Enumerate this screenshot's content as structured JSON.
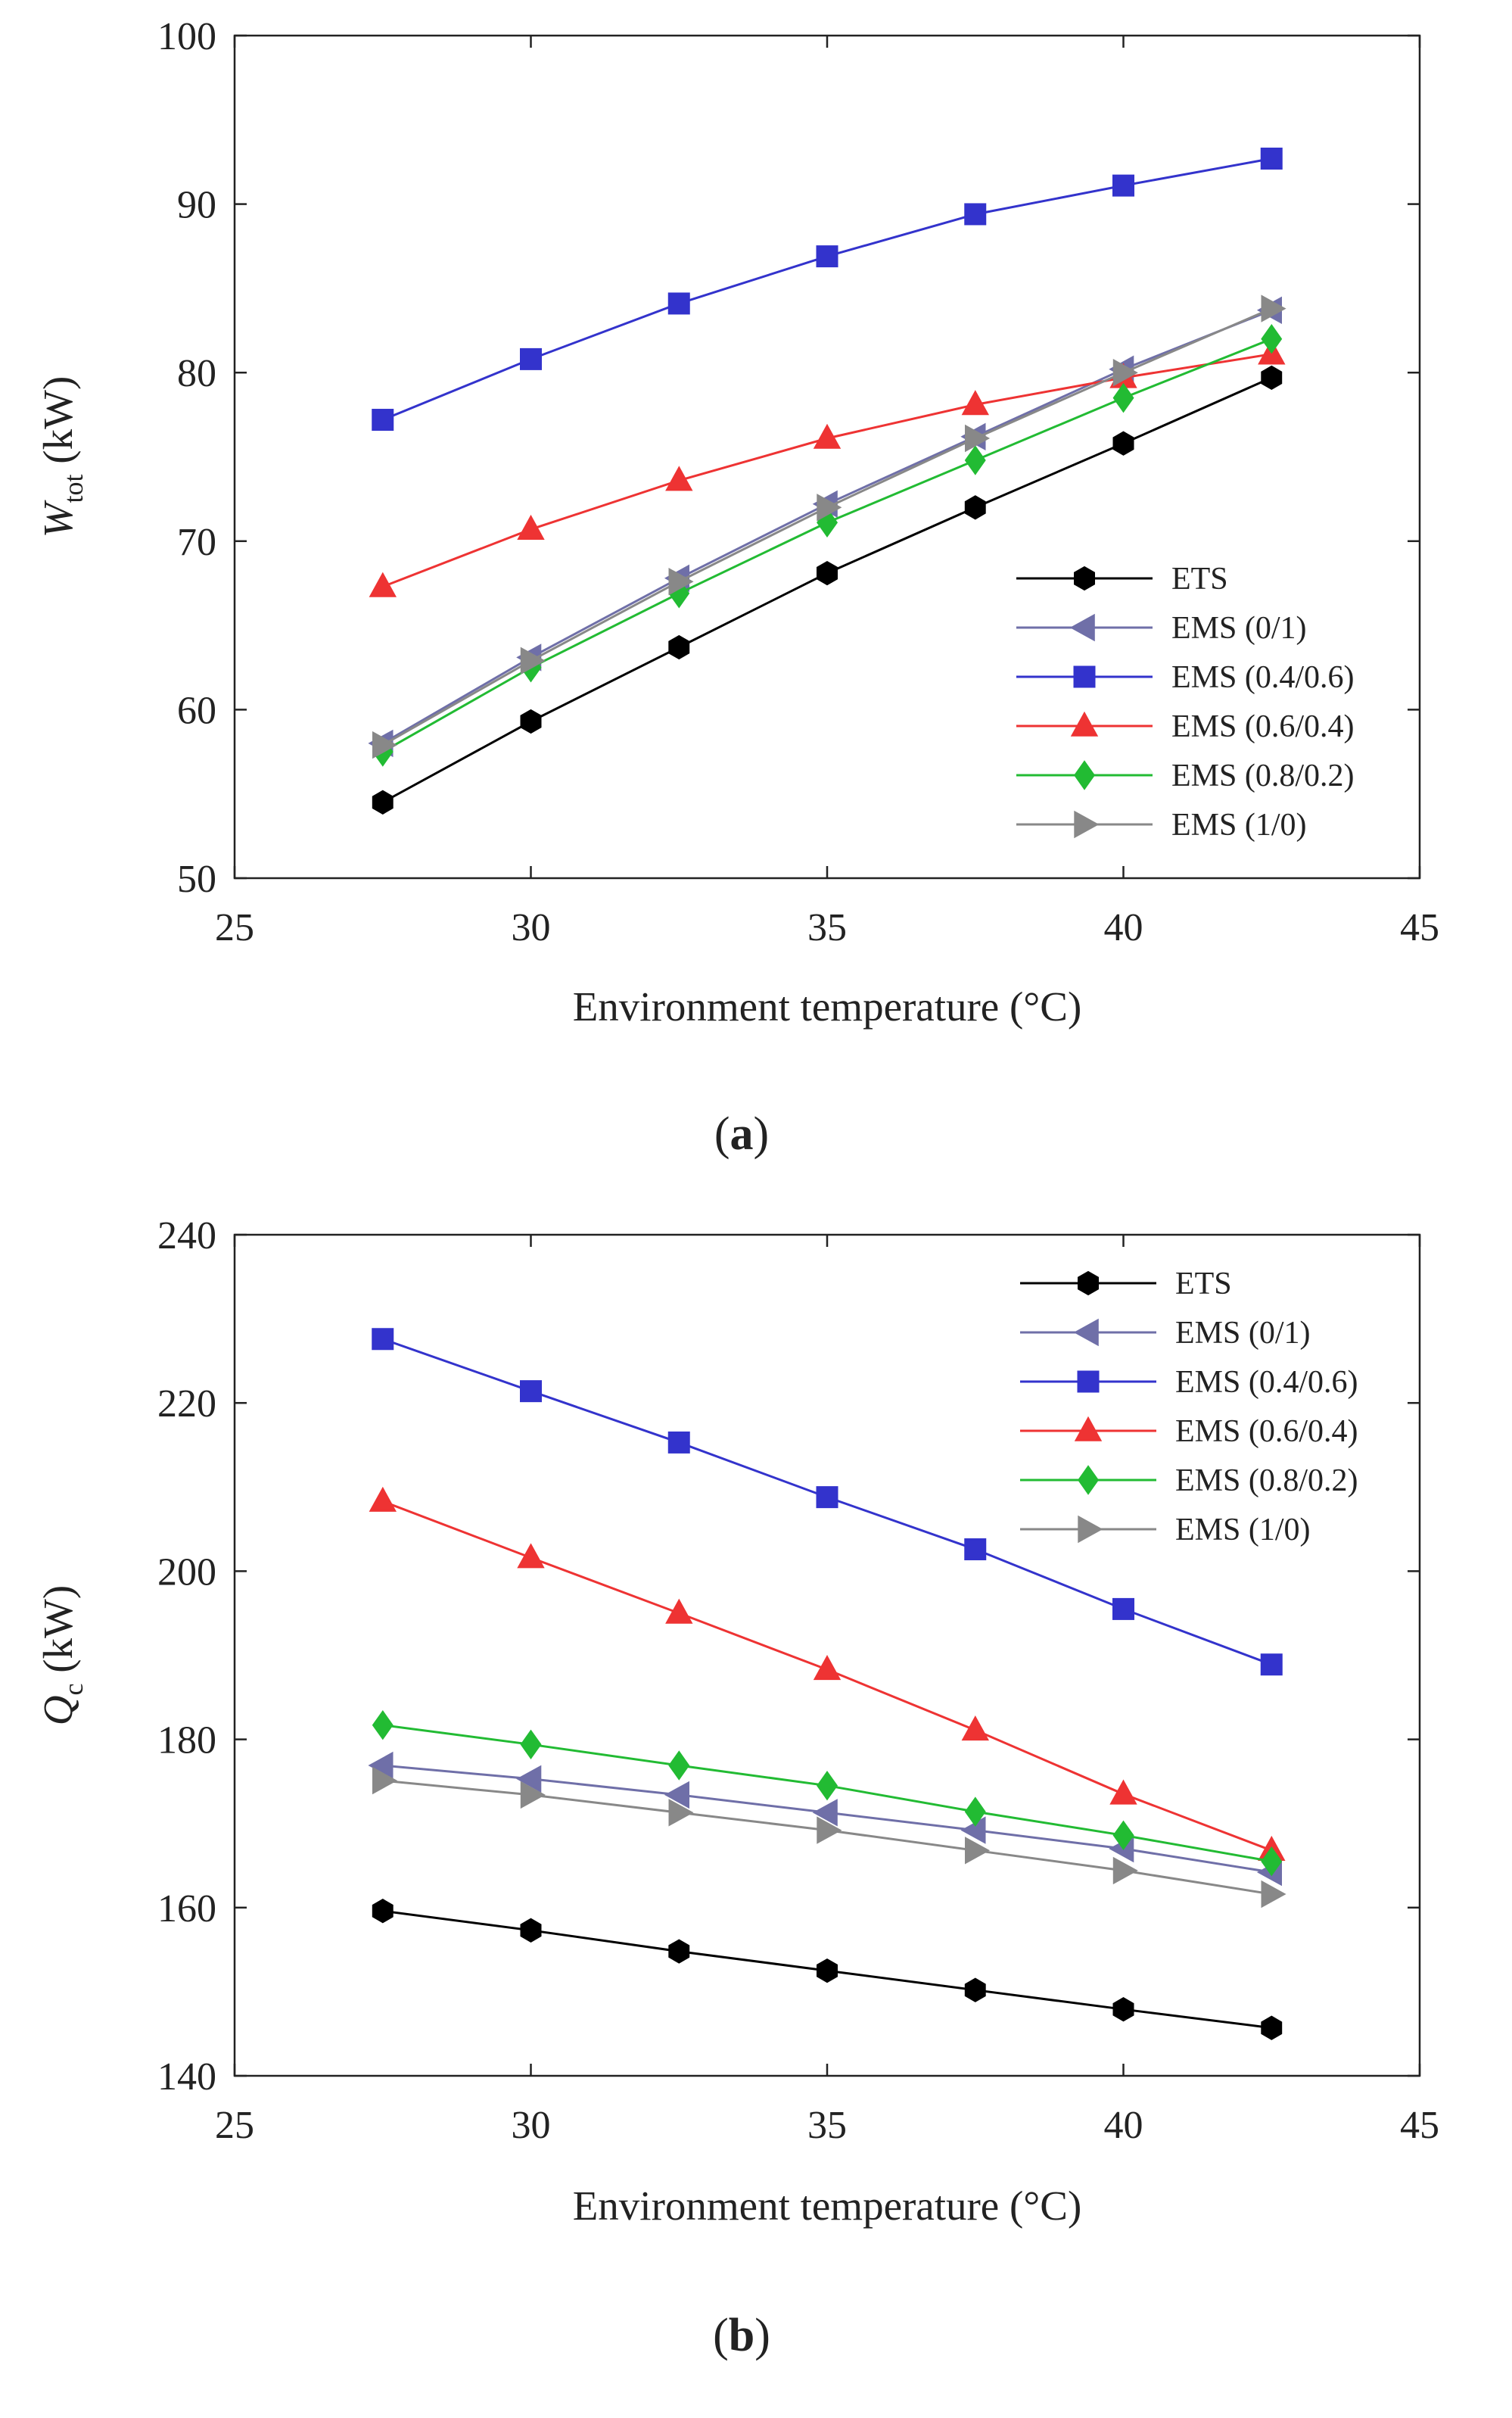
{
  "figure": {
    "panel_labels": [
      "a",
      "b"
    ]
  },
  "chart_data": [
    {
      "type": "line",
      "panel": "a",
      "title": "",
      "xlabel": "Environment temperature (°C)",
      "ylabel": {
        "main": "W",
        "sub": "tot",
        "unit": "(kW)"
      },
      "xlim": [
        25,
        45
      ],
      "ylim": [
        50,
        100
      ],
      "xticks": [
        25,
        30,
        35,
        40,
        45
      ],
      "yticks": [
        50,
        60,
        70,
        80,
        90,
        100
      ],
      "x": [
        27.5,
        30,
        32.5,
        35,
        37.5,
        40,
        42.5
      ],
      "legend_position": "bottom-right",
      "series": [
        {
          "name": "ETS",
          "color": "#000000",
          "marker": "hexagon",
          "values": [
            54.5,
            59.3,
            63.7,
            68.1,
            72.0,
            75.8,
            79.7
          ]
        },
        {
          "name": "EMS (0/1)",
          "color": "#6f6fa8",
          "marker": "triangle-left",
          "values": [
            58.0,
            63.1,
            67.8,
            72.2,
            76.2,
            80.2,
            83.7
          ]
        },
        {
          "name": "EMS (0.4/0.6)",
          "color": "#3333cc",
          "marker": "square",
          "values": [
            77.2,
            80.8,
            84.1,
            86.9,
            89.4,
            91.1,
            92.7
          ]
        },
        {
          "name": "EMS (0.6/0.4)",
          "color": "#ee3333",
          "marker": "triangle-up",
          "values": [
            67.3,
            70.7,
            73.6,
            76.1,
            78.1,
            79.7,
            81.1
          ]
        },
        {
          "name": "EMS (0.8/0.2)",
          "color": "#22bb33",
          "marker": "diamond",
          "values": [
            57.5,
            62.5,
            66.9,
            71.1,
            74.8,
            78.5,
            82.0
          ]
        },
        {
          "name": "EMS (1/0)",
          "color": "#888888",
          "marker": "triangle-right",
          "values": [
            57.9,
            62.9,
            67.6,
            72.0,
            76.1,
            80.0,
            83.8
          ]
        }
      ]
    },
    {
      "type": "line",
      "panel": "b",
      "title": "",
      "xlabel": "Environment temperature (°C)",
      "ylabel": {
        "main": "Q",
        "sub": "c",
        "unit": "(kW)"
      },
      "xlim": [
        25,
        45
      ],
      "ylim": [
        140,
        240
      ],
      "xticks": [
        25,
        30,
        35,
        40,
        45
      ],
      "yticks": [
        140,
        160,
        180,
        200,
        220,
        240
      ],
      "x": [
        27.5,
        30,
        32.5,
        35,
        37.5,
        40,
        42.5
      ],
      "legend_position": "top-right",
      "series": [
        {
          "name": "ETS",
          "color": "#000000",
          "marker": "hexagon",
          "values": [
            159.6,
            157.3,
            154.8,
            152.5,
            150.2,
            147.9,
            145.7
          ]
        },
        {
          "name": "EMS (0/1)",
          "color": "#6f6fa8",
          "marker": "triangle-left",
          "values": [
            176.9,
            175.3,
            173.4,
            171.3,
            169.2,
            167.0,
            164.2
          ]
        },
        {
          "name": "EMS (0.4/0.6)",
          "color": "#3333cc",
          "marker": "square",
          "values": [
            227.6,
            221.4,
            215.3,
            208.8,
            202.6,
            195.5,
            188.9
          ]
        },
        {
          "name": "EMS (0.6/0.4)",
          "color": "#ee3333",
          "marker": "triangle-up",
          "values": [
            208.3,
            201.6,
            195.0,
            188.3,
            181.1,
            173.5,
            166.8
          ]
        },
        {
          "name": "EMS (0.8/0.2)",
          "color": "#22bb33",
          "marker": "diamond",
          "values": [
            181.7,
            179.4,
            176.9,
            174.5,
            171.4,
            168.6,
            165.5
          ]
        },
        {
          "name": "EMS (1/0)",
          "color": "#888888",
          "marker": "triangle-right",
          "values": [
            175.1,
            173.4,
            171.3,
            169.2,
            166.8,
            164.4,
            161.6
          ]
        }
      ]
    }
  ]
}
